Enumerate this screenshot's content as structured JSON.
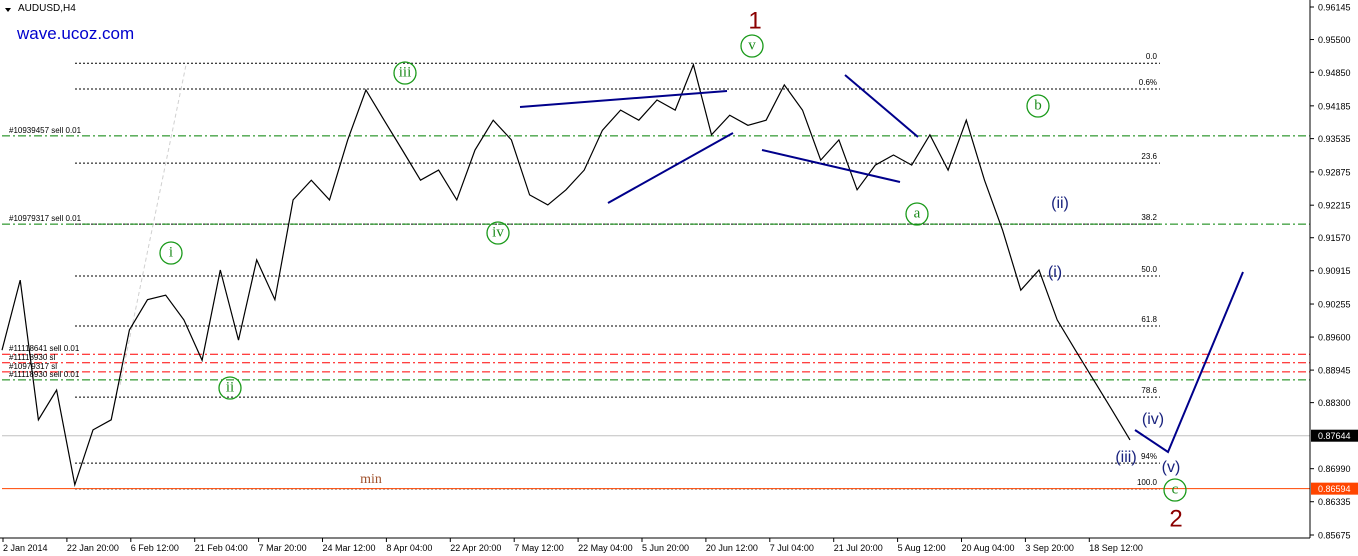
{
  "chart_data": {
    "type": "line",
    "title": "AUDUSD,H4",
    "watermark": "wave.ucoz.com",
    "series": [
      {
        "color": "#000000",
        "values": [
          0.8934,
          0.9073,
          0.8796,
          0.8855,
          0.8667,
          0.8776,
          0.8796,
          0.8974,
          0.9034,
          0.9043,
          0.8994,
          0.8914,
          0.9093,
          0.8954,
          0.9113,
          0.9034,
          0.9232,
          0.9271,
          0.9232,
          0.9351,
          0.945,
          0.939,
          0.9331,
          0.9271,
          0.9291,
          0.9232,
          0.9331,
          0.939,
          0.9351,
          0.9242,
          0.9222,
          0.9252,
          0.9291,
          0.937,
          0.941,
          0.939,
          0.943,
          0.941,
          0.95,
          0.9361,
          0.94,
          0.938,
          0.939,
          0.946,
          0.941,
          0.9311,
          0.9351,
          0.9252,
          0.9301,
          0.9321,
          0.9301,
          0.9361,
          0.9291,
          0.939,
          0.9271,
          0.9172,
          0.9053,
          0.9093,
          0.8994,
          0.8934,
          0.8875,
          0.8816,
          0.8756
        ]
      }
    ],
    "ylim": [
      0.85675,
      0.96145
    ],
    "yticks": [
      0.96145,
      {
        "value": 0.955,
        "label": "0.95500"
      },
      {
        "value": 0.9485,
        "label": "0.94850"
      },
      0.94185,
      0.93535,
      0.92875,
      0.92215,
      {
        "value": 0.9157,
        "label": "0.91570"
      },
      0.90915,
      0.90255,
      {
        "value": 0.896,
        "label": "0.89600"
      },
      0.88945,
      {
        "value": 0.883,
        "label": "0.88300"
      },
      {
        "value": 0.8699,
        "label": "0.86990"
      },
      0.86335,
      0.85675
    ],
    "xtick_labels": [
      "2 Jan 2014",
      "22 Jan 20:00",
      "6 Feb 12:00",
      "21 Feb 04:00",
      "7 Mar 20:00",
      "24 Mar 12:00",
      "8 Apr 04:00",
      "22 Apr 20:00",
      "7 May 12:00",
      "22 May 04:00",
      "5 Jun 20:00",
      "20 Jun 12:00",
      "7 Jul 04:00",
      "21 Jul 20:00",
      "5 Aug 12:00",
      "20 Aug 04:00",
      "3 Sep 20:00",
      "18 Sep 12:00"
    ],
    "fib_levels": [
      {
        "value": 0.9503,
        "label": "0.0"
      },
      {
        "value": 0.9452,
        "label": "0.6%"
      },
      {
        "value": 0.9305,
        "label": "23.6"
      },
      {
        "value": 0.9184,
        "label": "38.2"
      },
      {
        "value": 0.9081,
        "label": "50.0"
      },
      {
        "value": 0.8982,
        "label": "61.8"
      },
      {
        "value": 0.8841,
        "label": "78.6"
      },
      {
        "value": 0.871,
        "label": "94%"
      },
      {
        "value": 0.8659,
        "label": "100.0"
      }
    ],
    "orders": [
      {
        "value": 0.9359,
        "label": "#10939457 sell 0.01",
        "color": "#008000"
      },
      {
        "value": 0.9184,
        "label": "#10979317 sell 0.01",
        "color": "#008000"
      },
      {
        "value": 0.8926,
        "label": "#11118641 sell 0.01",
        "color": "#ff0000"
      },
      {
        "value": 0.8909,
        "label": "#11118930 sl",
        "color": "#ff0000"
      },
      {
        "value": 0.8891,
        "label": "#10979317 sl",
        "color": "#ff0000"
      },
      {
        "value": 0.8875,
        "label": "#11118930 sell 0.01",
        "color": "#008000"
      }
    ],
    "price_lines": [
      {
        "value": 0.87644,
        "color": "#c0c0c0"
      },
      {
        "value": 0.86594,
        "color": "#ff4500"
      }
    ],
    "wave_labels": [
      "1",
      "2",
      "v",
      "iii",
      "i",
      "ii",
      "iv",
      "a",
      "b",
      "c",
      "(i)",
      "(ii)",
      "(iii)",
      "(iv)",
      "(v)",
      "min"
    ]
  }
}
